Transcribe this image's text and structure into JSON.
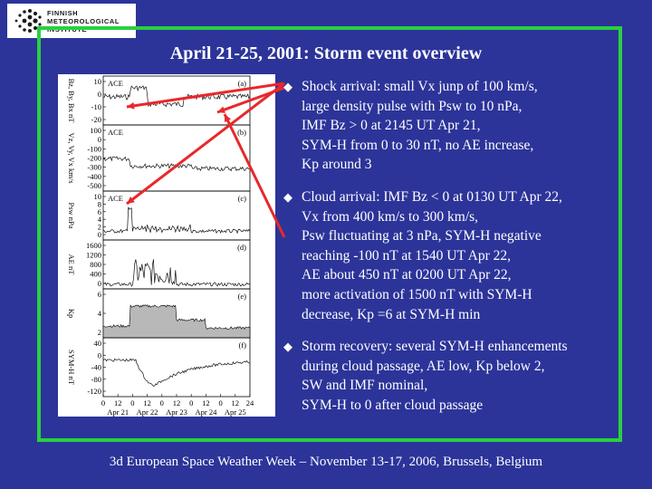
{
  "logo": {
    "lines": [
      "FINNISH",
      "METEOROLOGICAL",
      "INSTITUTE"
    ]
  },
  "title": "April 21-25, 2001: Storm event overview",
  "plot": {
    "panels": [
      {
        "label": "(a)",
        "source": "ACE",
        "ylabel": "Bz, By, Bx nT",
        "ticks": [
          "10",
          "0",
          "-10",
          "-20"
        ]
      },
      {
        "label": "(b)",
        "source": "ACE",
        "ylabel": "Vz, Vy, Vx km/s",
        "ticks": [
          "100",
          "0",
          "-100",
          "-200",
          "-300",
          "-400",
          "-500"
        ]
      },
      {
        "label": "(c)",
        "source": "ACE",
        "ylabel": "Psw nPa",
        "ticks": [
          "10",
          "8",
          "6",
          "4",
          "2",
          "0"
        ]
      },
      {
        "label": "(d)",
        "source": "",
        "ylabel": "AE nT",
        "ticks": [
          "1600",
          "1200",
          "800",
          "400",
          "0"
        ]
      },
      {
        "label": "(e)",
        "source": "",
        "ylabel": "Kp",
        "ticks": [
          "6",
          "4",
          "2"
        ]
      },
      {
        "label": "(f)",
        "source": "",
        "ylabel": "SYM-H nT",
        "ticks": [
          "40",
          "0",
          "-40",
          "-80",
          "-120"
        ]
      }
    ],
    "x_ticks": [
      "0",
      "12",
      "0",
      "12",
      "0",
      "12",
      "0",
      "12",
      "0",
      "12",
      "24"
    ],
    "x_days": [
      "Apr 21",
      "Apr 22",
      "Apr 23",
      "Apr 24",
      "Apr 25"
    ]
  },
  "bullets": [
    {
      "lines": [
        "Shock arrival: small Vx junp of 100 km/s,",
        "large density pulse with Psw to 10 nPa,",
        "IMF Bz > 0 at 2145 UT Apr 21,",
        "SYM-H from 0 to 30 nT, no AE increase,",
        "Kp around 3"
      ]
    },
    {
      "lines": [
        "Cloud arrival: IMF Bz < 0 at 0130 UT Apr 22,",
        "Vx from 400 km/s to 300 km/s,",
        "Psw fluctuating at 3 nPa, SYM-H negative",
        "reaching -100 nT at 1540 UT Apr 22,",
        "AE about 450 nT  at 0200 UT Apr 22,",
        "more activation of 1500 nT with SYM-H",
        "decrease, Kp =6 at SYM-H min"
      ]
    },
    {
      "lines": [
        "Storm recovery: several SYM-H enhancements",
        "during cloud passage, AE low, Kp below 2,",
        "SW and  IMF nominal,",
        "SYM-H to 0 after cloud passage"
      ]
    }
  ],
  "footer": "3d European Space Weather Week – November 13-17, 2006, Brussels, Belgium",
  "colors": {
    "background": "#2c3499",
    "frame": "#29d13f",
    "arrow": "#e8282c",
    "text": "#ffffff"
  }
}
